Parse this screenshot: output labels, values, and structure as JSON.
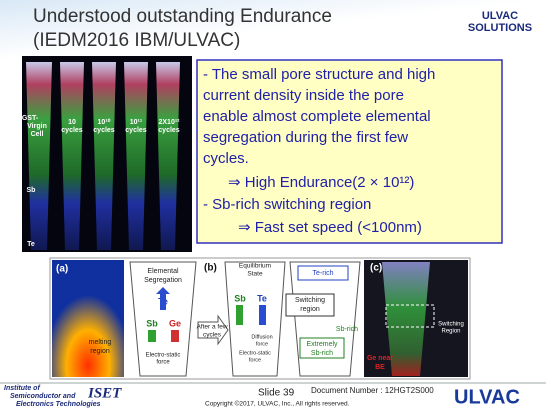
{
  "header": {
    "title_lines": [
      "Understood outstanding Endurance",
      "(IEDM2016 IBM/ULVAC)"
    ],
    "logo_lines": [
      "ULVAC",
      "SOLUTIONS"
    ]
  },
  "tem_image": {
    "columns": [
      [
        "GST-",
        "Virgin",
        "Cell"
      ],
      [
        "10",
        "cycles"
      ],
      [
        "10¹⁰",
        "cycles"
      ],
      [
        "10¹¹",
        "cycles"
      ],
      [
        "2X10¹²",
        "cycles"
      ]
    ],
    "element_labels": [
      "Sb",
      "Te"
    ]
  },
  "callout": {
    "lines": [
      "- The small pore structure and high",
      "current density inside the pore",
      "enable almost complete elemental",
      "segregation during the first few",
      "cycles.",
      "⇒  High Endurance(2 × 10¹²)",
      "-  Sb-rich switching region",
      "⇒  Fast set speed (<100nm)"
    ]
  },
  "figure": {
    "a": {
      "label": "(a)",
      "text": [
        "melting",
        "region"
      ]
    },
    "segregation": {
      "title": [
        "Elemental",
        "Segregation"
      ],
      "te": "Te",
      "sb": "Sb",
      "ge": "Ge",
      "force": [
        "Electro-static",
        "force"
      ]
    },
    "b": {
      "label": "(b)",
      "transition": [
        "After a few",
        "cycles"
      ]
    },
    "equilibrium": {
      "title": [
        "Equilibrium",
        "State"
      ],
      "sb": "Sb",
      "te": "Te",
      "diffusion": [
        "Diffusion",
        "force"
      ],
      "force": [
        "Electro-static",
        "force"
      ]
    },
    "regions": {
      "te_rich": "Te-rich",
      "switching": [
        "Switching",
        "region"
      ],
      "sb_rich": "Sb-rich",
      "extremely": [
        "Extremely",
        "Sb-rich"
      ]
    },
    "c": {
      "label": "(c)",
      "switching": [
        "Switching",
        "Region"
      ],
      "ge": [
        "Ge near",
        "BE"
      ]
    }
  },
  "footer": {
    "institute": [
      "Institute of",
      "Semiconductor and",
      "ISET",
      "Electronics Technologies"
    ],
    "slide": "Slide 39",
    "document_number": "Document Number : 12HGT2S000",
    "copyright": "Copyright ©2017, ULVAC, Inc., All rights reserved.",
    "brand": "ULVAC"
  }
}
